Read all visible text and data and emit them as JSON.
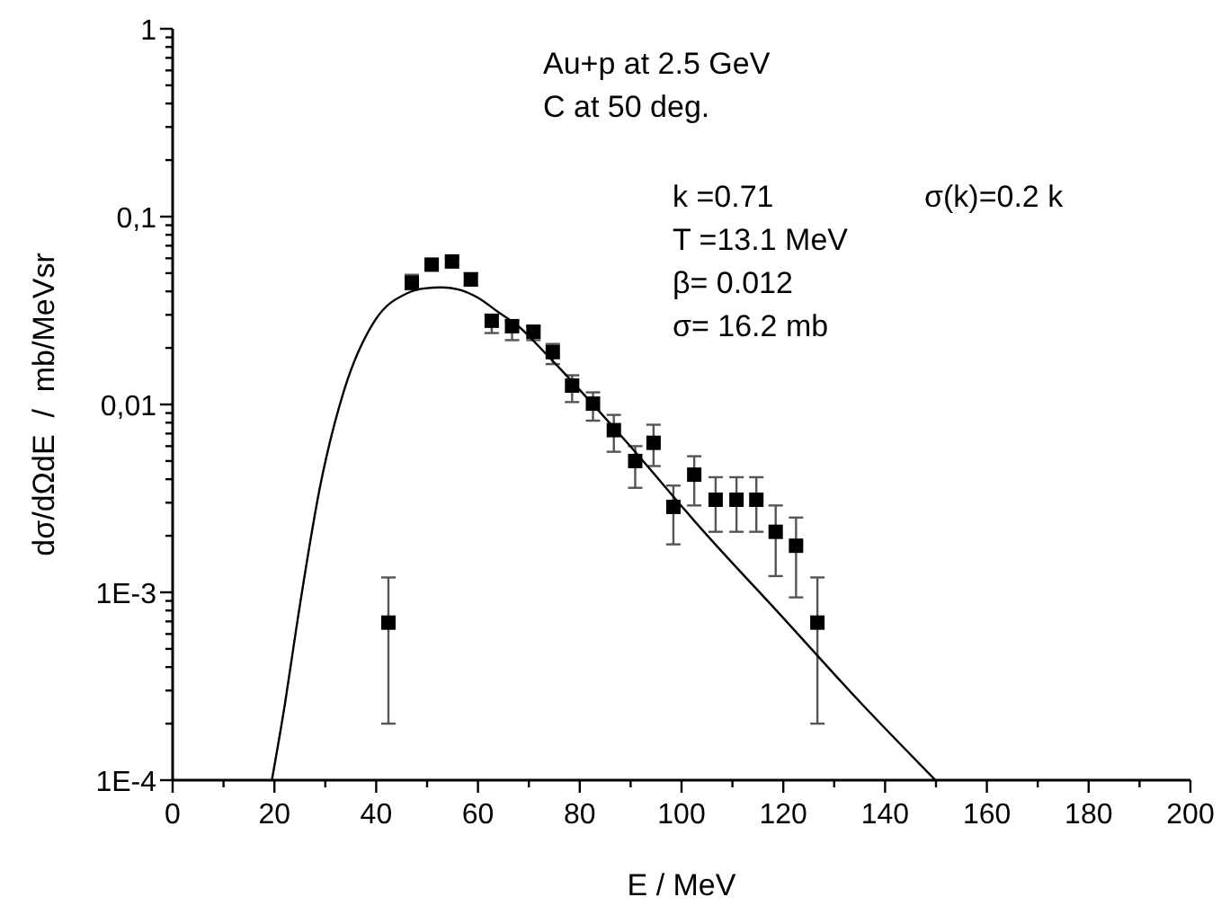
{
  "chart_data": {
    "type": "scatter",
    "xlabel": "E / MeV",
    "ylabel": "dσ/dΩdE  /  mb/MeVsr",
    "log": "y",
    "grid": false,
    "annotations": [
      "Au+p at 2.5 GeV",
      "C at 50 deg.",
      "k =0.71",
      "σ(k)=0.2 k",
      "T =13.1 MeV",
      "β= 0.012",
      "σ= 16.2 mb"
    ],
    "xlim": [
      0,
      200
    ],
    "xticks": [
      0,
      {
        "value": 10,
        "label": null
      },
      20,
      {
        "value": 30,
        "label": null
      },
      40,
      {
        "value": 50,
        "label": null
      },
      60,
      {
        "value": 70,
        "label": null
      },
      80,
      {
        "value": 90,
        "label": null
      },
      100,
      {
        "value": 110,
        "label": null
      },
      120,
      {
        "value": 130,
        "label": null
      },
      140,
      {
        "value": 150,
        "label": null
      },
      160,
      {
        "value": 170,
        "label": null
      },
      180,
      {
        "value": 190,
        "label": null
      },
      200
    ],
    "ylim": [
      0.0001,
      1
    ],
    "yticks": [
      {
        "value": 0.0001,
        "label": "1E-4"
      },
      {
        "value": 0.0002,
        "label": null
      },
      {
        "value": 0.0003,
        "label": null
      },
      {
        "value": 0.0004,
        "label": null
      },
      {
        "value": 0.0005,
        "label": null
      },
      {
        "value": 0.0006,
        "label": null
      },
      {
        "value": 0.0007,
        "label": null
      },
      {
        "value": 0.0008,
        "label": null
      },
      {
        "value": 0.0009,
        "label": null
      },
      {
        "value": 0.001,
        "label": "1E-3"
      },
      {
        "value": 0.002,
        "label": null
      },
      {
        "value": 0.003,
        "label": null
      },
      {
        "value": 0.004,
        "label": null
      },
      {
        "value": 0.005,
        "label": null
      },
      {
        "value": 0.006,
        "label": null
      },
      {
        "value": 0.007,
        "label": null
      },
      {
        "value": 0.008,
        "label": null
      },
      {
        "value": 0.009,
        "label": null
      },
      {
        "value": 0.01,
        "label": "0,01"
      },
      {
        "value": 0.02,
        "label": null
      },
      {
        "value": 0.03,
        "label": null
      },
      {
        "value": 0.04,
        "label": null
      },
      {
        "value": 0.05,
        "label": null
      },
      {
        "value": 0.06,
        "label": null
      },
      {
        "value": 0.07,
        "label": null
      },
      {
        "value": 0.08,
        "label": null
      },
      {
        "value": 0.09,
        "label": null
      },
      {
        "value": 0.1,
        "label": "0,1"
      },
      {
        "value": 0.2,
        "label": null
      },
      {
        "value": 0.3,
        "label": null
      },
      {
        "value": 0.4,
        "label": null
      },
      {
        "value": 0.5,
        "label": null
      },
      {
        "value": 0.6,
        "label": null
      },
      {
        "value": 0.7,
        "label": null
      },
      {
        "value": 0.8,
        "label": null
      },
      {
        "value": 0.9,
        "label": null
      },
      {
        "value": 1,
        "label": "1"
      }
    ],
    "series": [
      {
        "color": "#000000",
        "marker": "square",
        "x": [
          42.4,
          47.0,
          50.9,
          54.9,
          58.6,
          62.7,
          66.7,
          70.9,
          74.7,
          78.5,
          82.6,
          86.7,
          90.9,
          94.5,
          98.4,
          102.5,
          106.7,
          110.8,
          114.7,
          118.5,
          122.5,
          126.7
        ],
        "values": [
          0.00069,
          0.0445,
          0.0555,
          0.0577,
          0.0463,
          0.0279,
          0.0261,
          0.0244,
          0.019,
          0.0126,
          0.0101,
          0.0073,
          0.005,
          0.00625,
          0.00285,
          0.00423,
          0.00311,
          0.00311,
          0.00311,
          0.0021,
          0.00177,
          0.00069
        ],
        "errors": [
          [
            0.0002,
            0.0012
          ],
          [
            0.041,
            0.049
          ],
          [
            0.053,
            0.058
          ],
          [
            0.055,
            0.06
          ],
          [
            0.043,
            0.05
          ],
          [
            0.024,
            0.03
          ],
          [
            0.022,
            0.028
          ],
          [
            0.022,
            0.026
          ],
          [
            0.0164,
            0.021
          ],
          [
            0.0103,
            0.0143
          ],
          [
            0.0082,
            0.0116
          ],
          [
            0.0056,
            0.0088
          ],
          [
            0.0036,
            0.006
          ],
          [
            0.0047,
            0.0078
          ],
          [
            0.0018,
            0.0037
          ],
          [
            0.0029,
            0.0053
          ],
          [
            0.0021,
            0.0041
          ],
          [
            0.0021,
            0.0041
          ],
          [
            0.0021,
            0.0041
          ],
          [
            0.00122,
            0.0029
          ],
          [
            0.00094,
            0.0025
          ],
          [
            0.0002,
            0.0012
          ]
        ]
      },
      {
        "type": "line",
        "color": "#000000",
        "line_style": "solid",
        "x": [
          19.5,
          22.1,
          24.4,
          29.1,
          33.7,
          39.8,
          46.0,
          49.5,
          52.9,
          56.0,
          60.0,
          64.0,
          68.0,
          73.6,
          89.0,
          104.4,
          119.8,
          135.1,
          149.9
        ],
        "values": [
          0.0001,
          0.000258,
          0.00067,
          0.0038,
          0.0119,
          0.0281,
          0.039,
          0.0415,
          0.042,
          0.041,
          0.037,
          0.031,
          0.026,
          0.0183,
          0.0064,
          0.0021,
          0.00074,
          0.00026,
          0.0001
        ]
      }
    ]
  }
}
